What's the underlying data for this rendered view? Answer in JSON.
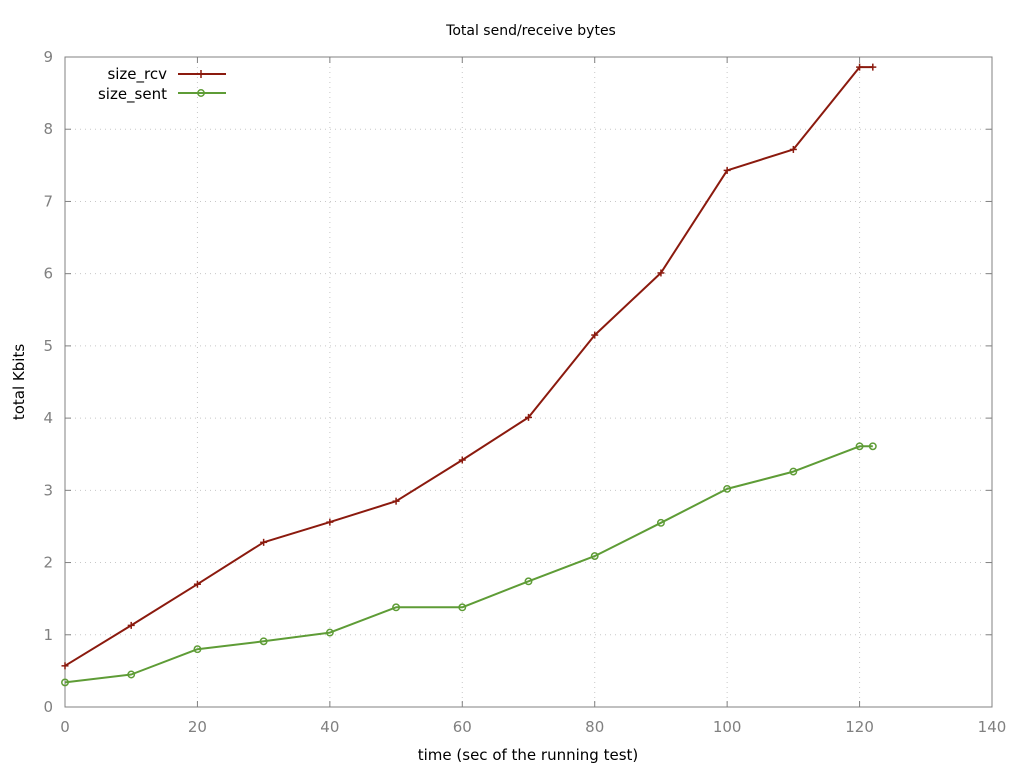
{
  "chart_data": {
    "type": "line",
    "title": "Total send/receive bytes",
    "xlabel": "time (sec of the running test)",
    "ylabel": "total Kbits",
    "xlim": [
      0,
      140
    ],
    "ylim": [
      0,
      9
    ],
    "xticks": [
      0,
      20,
      40,
      60,
      80,
      100,
      120,
      140
    ],
    "yticks": [
      0,
      1,
      2,
      3,
      4,
      5,
      6,
      7,
      8,
      9
    ],
    "grid": true,
    "legend_position": "top-left",
    "series": [
      {
        "name": "size_rcv",
        "color": "#8b1a0e",
        "marker": "plus",
        "points": [
          [
            0,
            0.57
          ],
          [
            10,
            1.13
          ],
          [
            20,
            1.7
          ],
          [
            30,
            2.28
          ],
          [
            40,
            2.56
          ],
          [
            50,
            2.85
          ],
          [
            60,
            3.42
          ],
          [
            70,
            4.01
          ],
          [
            80,
            5.15
          ],
          [
            90,
            6.01
          ],
          [
            100,
            7.43
          ],
          [
            110,
            7.72
          ],
          [
            120,
            8.86
          ],
          [
            122,
            8.86
          ]
        ]
      },
      {
        "name": "size_sent",
        "color": "#5e9c36",
        "marker": "circle",
        "points": [
          [
            0,
            0.34
          ],
          [
            10,
            0.45
          ],
          [
            20,
            0.8
          ],
          [
            30,
            0.91
          ],
          [
            40,
            1.03
          ],
          [
            50,
            1.38
          ],
          [
            60,
            1.38
          ],
          [
            70,
            1.74
          ],
          [
            80,
            2.09
          ],
          [
            90,
            2.55
          ],
          [
            100,
            3.02
          ],
          [
            110,
            3.26
          ],
          [
            120,
            3.61
          ],
          [
            122,
            3.61
          ]
        ]
      }
    ]
  }
}
